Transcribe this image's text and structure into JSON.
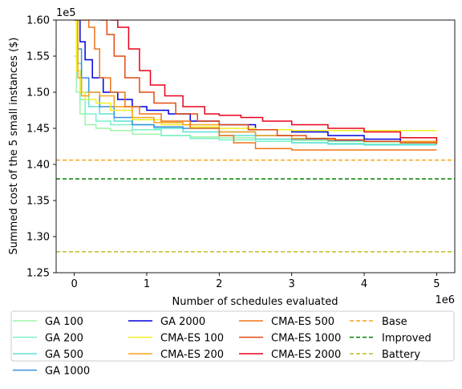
{
  "chart_data": {
    "type": "line",
    "xlabel": "Number of schedules evaluated",
    "ylabel": "Summed cost of the 5 small instances ($)",
    "x_offset_label": "1e6",
    "y_offset_label": "1e5",
    "xlim": [
      -0.25,
      5.25
    ],
    "ylim": [
      1.25,
      1.6
    ],
    "x_ticks": [
      0,
      1,
      2,
      3,
      4,
      5
    ],
    "y_ticks": [
      1.25,
      1.3,
      1.35,
      1.4,
      1.45,
      1.5,
      1.55,
      1.6
    ],
    "x_tick_labels": [
      "0",
      "1",
      "2",
      "3",
      "4",
      "5"
    ],
    "y_tick_labels": [
      "1.25",
      "1.30",
      "1.35",
      "1.40",
      "1.45",
      "1.50",
      "1.55",
      "1.60"
    ],
    "grid": false,
    "legend_position": "bottom",
    "legend_columns": 4,
    "units": "x in millions of schedules, y in units of 1e5 $",
    "series": [
      {
        "name": "GA 100",
        "color": "#a0f3a8",
        "x": [
          0,
          0.03,
          0.08,
          0.15,
          0.3,
          0.5,
          0.8,
          1.2,
          1.6,
          2.0,
          2.5,
          3.0,
          3.5,
          4.0,
          5.0
        ],
        "y": [
          1.55,
          1.5,
          1.47,
          1.455,
          1.45,
          1.447,
          1.442,
          1.44,
          1.438,
          1.437,
          1.435,
          1.433,
          1.432,
          1.431,
          1.43
        ]
      },
      {
        "name": "GA 200",
        "color": "#7cf0c8",
        "x": [
          0,
          0.03,
          0.08,
          0.15,
          0.3,
          0.5,
          0.8,
          1.2,
          1.6,
          2.0,
          2.5,
          3.0,
          3.5,
          4.0,
          5.0
        ],
        "y": [
          1.6,
          1.53,
          1.49,
          1.47,
          1.46,
          1.455,
          1.448,
          1.44,
          1.436,
          1.434,
          1.432,
          1.43,
          1.429,
          1.428,
          1.428
        ]
      },
      {
        "name": "GA 500",
        "color": "#5ce1d9",
        "x": [
          0,
          0.05,
          0.1,
          0.2,
          0.35,
          0.55,
          0.8,
          1.1,
          1.5,
          2.0,
          2.5,
          3.0,
          3.5,
          4.0,
          5.0
        ],
        "y": [
          1.6,
          1.54,
          1.5,
          1.48,
          1.47,
          1.46,
          1.455,
          1.45,
          1.445,
          1.44,
          1.435,
          1.43,
          1.428,
          1.427,
          1.427
        ]
      },
      {
        "name": "GA 1000",
        "color": "#3b8fd9",
        "x": [
          0,
          0.05,
          0.1,
          0.2,
          0.35,
          0.55,
          0.8,
          1.1,
          1.5,
          2.0,
          2.5,
          3.0,
          3.5,
          4.0,
          5.0
        ],
        "y": [
          1.6,
          1.56,
          1.52,
          1.5,
          1.48,
          1.465,
          1.455,
          1.452,
          1.45,
          1.445,
          1.44,
          1.435,
          1.433,
          1.432,
          1.432
        ]
      },
      {
        "name": "GA 2000",
        "color": "#0000e0",
        "x": [
          0,
          0.08,
          0.15,
          0.25,
          0.4,
          0.6,
          0.8,
          1.0,
          1.3,
          1.6,
          2.0,
          2.5,
          3.0,
          3.5,
          4.0,
          4.5,
          5.0
        ],
        "y": [
          1.6,
          1.57,
          1.545,
          1.52,
          1.5,
          1.49,
          1.48,
          1.475,
          1.47,
          1.46,
          1.455,
          1.448,
          1.445,
          1.44,
          1.435,
          1.432,
          1.43
        ]
      },
      {
        "name": "CMA-ES 100",
        "color": "#f0f020",
        "x": [
          0,
          0.03,
          0.08,
          0.15,
          0.3,
          0.5,
          0.8,
          1.2,
          1.6,
          2.0,
          2.5,
          3.0,
          3.5,
          4.0,
          5.0
        ],
        "y": [
          1.6,
          1.53,
          1.5,
          1.49,
          1.485,
          1.475,
          1.462,
          1.455,
          1.452,
          1.45,
          1.448,
          1.447,
          1.447,
          1.447,
          1.447
        ]
      },
      {
        "name": "CMA-ES 200",
        "color": "#f7a21a",
        "x": [
          0,
          0.05,
          0.1,
          0.2,
          0.35,
          0.55,
          0.8,
          1.1,
          1.5,
          2.0,
          2.5,
          3.0,
          3.5,
          4.0,
          5.0
        ],
        "y": [
          1.6,
          1.52,
          1.495,
          1.5,
          1.495,
          1.48,
          1.465,
          1.458,
          1.455,
          1.445,
          1.44,
          1.436,
          1.434,
          1.432,
          1.43
        ]
      },
      {
        "name": "CMA-ES 500",
        "color": "#ef7318",
        "x": [
          0,
          0.1,
          0.2,
          0.28,
          0.35,
          0.5,
          0.7,
          0.9,
          1.2,
          1.6,
          2.0,
          2.2,
          2.5,
          3.0,
          3.5,
          4.0,
          5.0
        ],
        "y": [
          1.6,
          1.6,
          1.59,
          1.56,
          1.52,
          1.5,
          1.48,
          1.47,
          1.46,
          1.45,
          1.44,
          1.43,
          1.422,
          1.42,
          1.42,
          1.42,
          1.42
        ]
      },
      {
        "name": "CMA-ES 1000",
        "color": "#e24a14",
        "x": [
          0.35,
          0.45,
          0.55,
          0.7,
          0.9,
          1.1,
          1.4,
          1.7,
          2.0,
          2.4,
          2.8,
          3.2,
          3.6,
          4.0,
          4.5,
          5.0
        ],
        "y": [
          1.6,
          1.58,
          1.55,
          1.52,
          1.5,
          1.485,
          1.47,
          1.46,
          1.455,
          1.448,
          1.44,
          1.436,
          1.434,
          1.432,
          1.43,
          1.428
        ]
      },
      {
        "name": "CMA-ES 2000",
        "color": "#e8001a",
        "x": [
          0.5,
          0.6,
          0.75,
          0.9,
          1.05,
          1.25,
          1.5,
          1.8,
          2.0,
          2.3,
          2.6,
          3.0,
          3.5,
          4.0,
          4.5,
          5.0
        ],
        "y": [
          1.6,
          1.59,
          1.56,
          1.53,
          1.51,
          1.495,
          1.48,
          1.47,
          1.468,
          1.465,
          1.46,
          1.455,
          1.45,
          1.445,
          1.437,
          1.432
        ]
      }
    ],
    "reference_lines": [
      {
        "name": "Base",
        "color": "#f7a21a",
        "y": 1.406
      },
      {
        "name": "Improved",
        "color": "#008000",
        "y": 1.38
      },
      {
        "name": "Battery",
        "color": "#bcbd22",
        "y": 1.279
      }
    ],
    "legend_order": [
      "GA 100",
      "GA 200",
      "GA 500",
      "GA 1000",
      "GA 2000",
      "CMA-ES 100",
      "CMA-ES 200",
      "CMA-ES 500",
      "CMA-ES 1000",
      "CMA-ES 2000",
      "Base",
      "Improved",
      "Battery"
    ]
  }
}
